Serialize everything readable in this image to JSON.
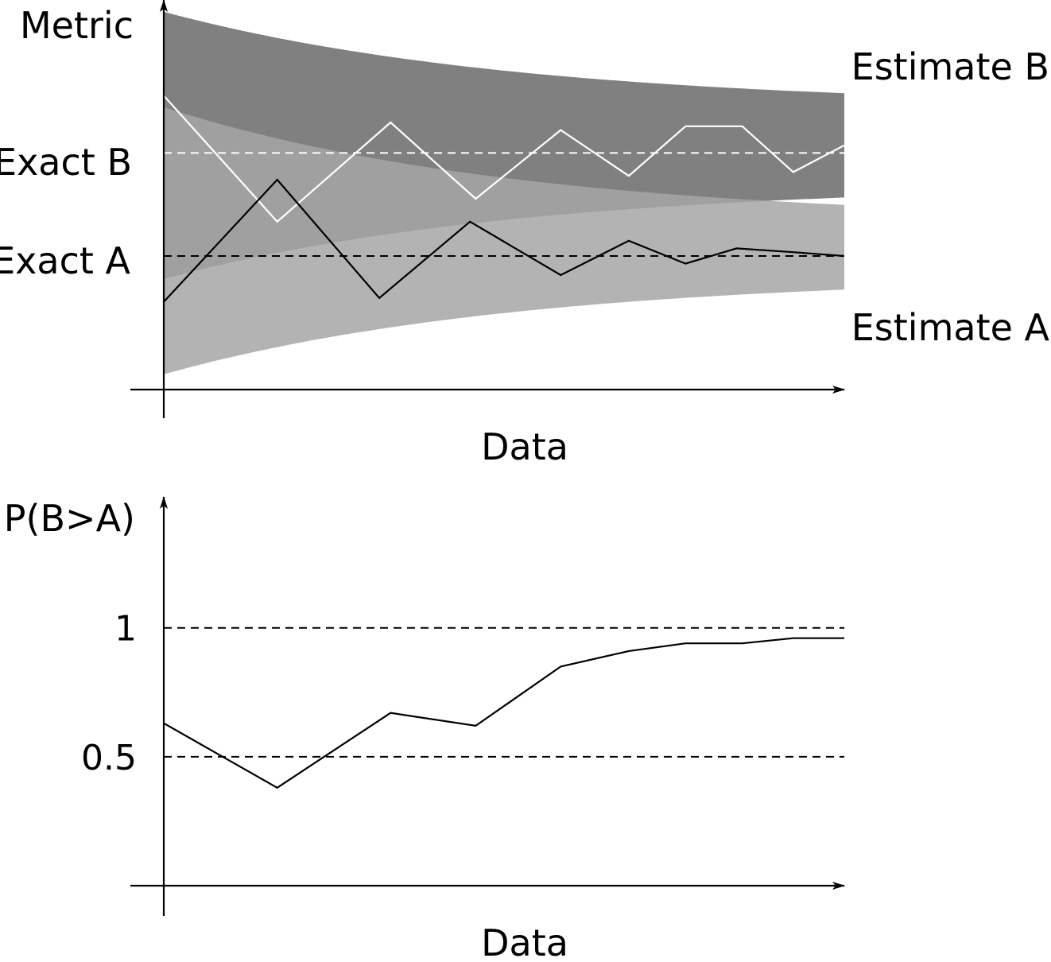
{
  "chart_data": [
    {
      "type": "line",
      "ylabel": "Metric",
      "xlabel": "Data",
      "xlim": [
        0,
        12
      ],
      "ylim": [
        0,
        10
      ],
      "grid": false,
      "reference_lines": [
        {
          "label": "Exact B",
          "y": 6.2,
          "style": "dashed",
          "color": "#ffffff"
        },
        {
          "label": "Exact A",
          "y": 3.5,
          "style": "dashed",
          "color": "#000000"
        }
      ],
      "bands": [
        {
          "label": "Estimate B",
          "color": "#808080",
          "opacity": 1,
          "upper": {
            "start": 9.9,
            "end": 7.4
          },
          "lower": {
            "start": 2.9,
            "end": 5.4
          }
        },
        {
          "label": "Estimate A",
          "color": "#a6a6a6",
          "opacity": 0.85,
          "upper": {
            "start": 7.4,
            "end": 4.4
          },
          "lower": {
            "start": 0.4,
            "end": 3.0
          }
        }
      ],
      "series": [
        {
          "color": "#ffffff",
          "x": [
            0,
            2,
            4,
            5.5,
            7,
            8.2,
            9.2,
            10.2,
            11.1,
            12
          ],
          "y": [
            7.7,
            4.4,
            7.0,
            5.0,
            6.8,
            5.6,
            6.9,
            6.9,
            5.7,
            6.4
          ]
        },
        {
          "color": "#000000",
          "x": [
            0,
            2,
            3.8,
            5.4,
            7,
            8.2,
            9.2,
            10.1,
            11.1,
            12
          ],
          "y": [
            2.3,
            5.5,
            2.4,
            4.4,
            3.0,
            3.9,
            3.3,
            3.7,
            3.6,
            3.5
          ]
        }
      ],
      "side_labels": [
        "Estimate B",
        "Estimate A"
      ]
    },
    {
      "type": "line",
      "ylabel": "P(B>A)",
      "xlabel": "Data",
      "xlim": [
        0,
        12
      ],
      "ylim": [
        0,
        1.4
      ],
      "yticks": [
        {
          "value": 1,
          "label": "1"
        },
        {
          "value": 0.5,
          "label": "0.5"
        }
      ],
      "grid": false,
      "reference_lines": [
        {
          "y": 1,
          "style": "dashed",
          "color": "#000000"
        },
        {
          "y": 0.5,
          "style": "dashed",
          "color": "#000000"
        }
      ],
      "series": [
        {
          "color": "#000000",
          "x": [
            0,
            2,
            4,
            5.5,
            7,
            8.2,
            9.2,
            10.2,
            11.1,
            12
          ],
          "y": [
            0.63,
            0.38,
            0.67,
            0.62,
            0.85,
            0.91,
            0.94,
            0.94,
            0.96,
            0.96
          ]
        }
      ]
    }
  ]
}
